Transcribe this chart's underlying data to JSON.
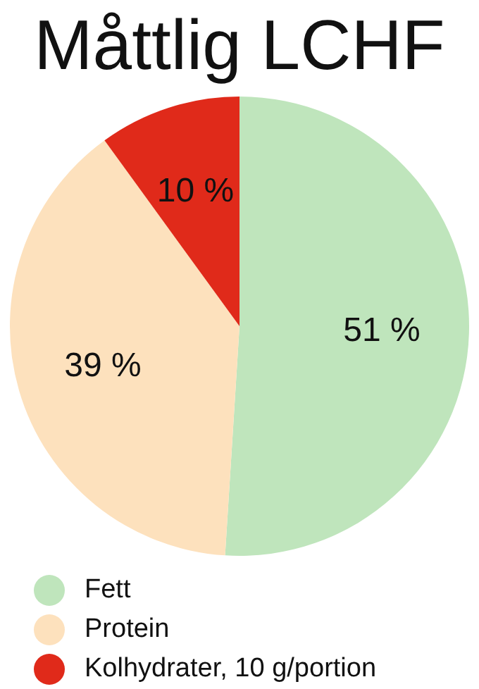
{
  "chart_data": {
    "type": "pie",
    "title": "Måttlig LCHF",
    "categories": [
      "Fett",
      "Protein",
      "Kolhydrater, 10 g/portion"
    ],
    "values": [
      51,
      39,
      10
    ],
    "colors": [
      "#bfe5bc",
      "#fde1bd",
      "#e02a1a"
    ],
    "value_labels": [
      "51 %",
      "39 %",
      "10 %"
    ],
    "legend": "bottom left"
  }
}
